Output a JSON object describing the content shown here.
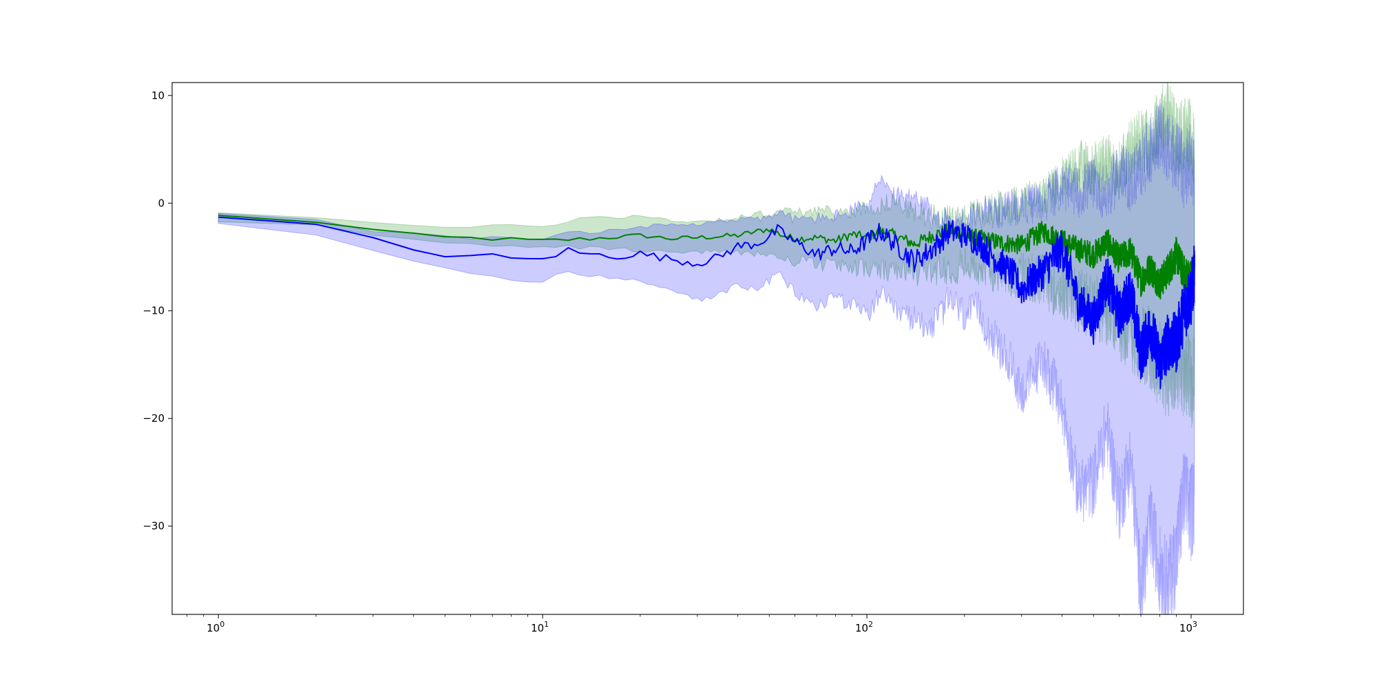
{
  "chart_data": {
    "type": "line",
    "title": "",
    "xlabel": "",
    "ylabel": "",
    "xscale": "log",
    "xlim": [
      0.72,
      1450
    ],
    "ylim": [
      -38.2,
      11.2
    ],
    "grid": false,
    "legend": null,
    "x_ticks": [
      {
        "value": 1,
        "base": "10",
        "exp": "0"
      },
      {
        "value": 10,
        "base": "10",
        "exp": "1"
      },
      {
        "value": 100,
        "base": "10",
        "exp": "2"
      },
      {
        "value": 1000,
        "base": "10",
        "exp": "3"
      }
    ],
    "y_ticks": [
      {
        "value": 10,
        "label": "10"
      },
      {
        "value": 0,
        "label": "0"
      },
      {
        "value": -10,
        "label": "−10"
      },
      {
        "value": -20,
        "label": "−20"
      },
      {
        "value": -30,
        "label": "−30"
      }
    ],
    "series": [
      {
        "color": "#008000",
        "band_color": "#008000",
        "band_opacity": 0.2,
        "x": [
          1,
          2,
          3,
          4,
          5,
          7,
          10,
          14,
          20,
          25,
          30,
          40,
          50,
          55,
          60,
          70,
          80,
          90,
          100,
          110,
          120,
          140,
          160,
          180,
          200,
          250,
          300,
          350,
          400,
          450,
          500,
          550,
          600,
          650,
          700,
          750,
          800,
          850,
          900,
          950,
          1000,
          1024
        ],
        "y": [
          -1.2,
          -1.7,
          -2.5,
          -3.0,
          -3.2,
          -3.3,
          -3.5,
          -3.3,
          -3.0,
          -3.3,
          -3.2,
          -3.0,
          -2.4,
          -3.0,
          -3.3,
          -3.2,
          -3.5,
          -2.9,
          -3.2,
          -2.6,
          -2.9,
          -3.8,
          -3.0,
          -2.5,
          -2.9,
          -3.6,
          -3.9,
          -2.6,
          -3.5,
          -4.3,
          -4.8,
          -3.6,
          -5.2,
          -4.5,
          -7.2,
          -6.0,
          -7.5,
          -6.2,
          -4.8,
          -6.5,
          -7.0,
          -6.0
        ],
        "y_upper": [
          -0.8,
          -1.2,
          -1.8,
          -2.1,
          -2.3,
          -2.2,
          -2.1,
          -1.3,
          -1.2,
          -1.6,
          -1.7,
          -1.4,
          -0.9,
          -0.7,
          -0.9,
          -0.6,
          -1.0,
          -0.7,
          -0.4,
          -0.3,
          0.3,
          -0.9,
          -1.2,
          -1.5,
          -1.2,
          -0.5,
          0.1,
          0.5,
          2.1,
          3.5,
          3.2,
          3.8,
          3.0,
          5.0,
          6.0,
          5.5,
          7.8,
          8.5,
          6.0,
          6.5,
          6.0,
          4.5
        ],
        "y_lower": [
          -1.6,
          -2.1,
          -3.1,
          -3.5,
          -3.8,
          -3.9,
          -4.0,
          -4.1,
          -4.4,
          -4.5,
          -4.6,
          -4.5,
          -4.8,
          -5.2,
          -5.4,
          -5.6,
          -5.8,
          -5.9,
          -6.1,
          -6.3,
          -6.5,
          -6.4,
          -6.2,
          -6.0,
          -5.8,
          -6.3,
          -6.8,
          -7.2,
          -8.2,
          -9.0,
          -9.5,
          -10.2,
          -11.0,
          -12.0,
          -13.0,
          -13.5,
          -15.0,
          -16.0,
          -14.5,
          -15.5,
          -17.0,
          -15.0
        ]
      },
      {
        "color": "#0000ff",
        "band_color": "#0000ff",
        "band_opacity": 0.2,
        "x": [
          1,
          2,
          3,
          4,
          5,
          6,
          7,
          9,
          10,
          12,
          14,
          17,
          20,
          25,
          30,
          35,
          40,
          45,
          50,
          53,
          60,
          70,
          80,
          90,
          100,
          110,
          120,
          140,
          160,
          180,
          200,
          220,
          250,
          280,
          300,
          350,
          400,
          450,
          500,
          550,
          600,
          650,
          700,
          750,
          800,
          850,
          900,
          950,
          1000,
          1024
        ],
        "y": [
          -1.4,
          -2.2,
          -3.5,
          -4.3,
          -4.7,
          -4.9,
          -5.0,
          -5.3,
          -5.1,
          -4.4,
          -4.8,
          -4.9,
          -4.7,
          -5.2,
          -5.6,
          -5.0,
          -4.0,
          -3.8,
          -3.2,
          -2.5,
          -3.6,
          -4.8,
          -4.2,
          -4.5,
          -3.5,
          -2.6,
          -3.6,
          -5.4,
          -4.2,
          -2.6,
          -3.0,
          -3.6,
          -5.2,
          -6.6,
          -8.0,
          -6.3,
          -4.2,
          -9.2,
          -11.0,
          -7.0,
          -10.5,
          -8.2,
          -14.0,
          -11.5,
          -15.0,
          -12.8,
          -13.0,
          -10.0,
          -8.5,
          -6.5
        ],
        "y_upper": [
          -1.1,
          -1.6,
          -2.5,
          -2.9,
          -3.1,
          -3.2,
          -3.2,
          -3.3,
          -3.2,
          -2.7,
          -2.8,
          -2.5,
          -2.2,
          -2.0,
          -2.1,
          -1.6,
          -1.5,
          -1.3,
          -1.4,
          -0.8,
          -1.5,
          -1.4,
          -1.2,
          -0.7,
          -0.1,
          2.2,
          0.6,
          0.4,
          -1.0,
          -1.8,
          -1.6,
          -0.9,
          -0.8,
          -0.4,
          -0.3,
          0.2,
          1.5,
          1.0,
          2.0,
          0.8,
          3.0,
          2.0,
          3.5,
          5.0,
          6.5,
          5.0,
          4.5,
          3.0,
          4.0,
          3.0
        ],
        "y_lower": [
          -1.7,
          -2.8,
          -4.3,
          -5.4,
          -6.2,
          -6.6,
          -6.9,
          -7.4,
          -7.2,
          -6.4,
          -6.7,
          -7.0,
          -7.3,
          -8.1,
          -9.0,
          -8.5,
          -7.6,
          -8.0,
          -7.3,
          -6.5,
          -8.3,
          -9.7,
          -8.5,
          -9.5,
          -10.5,
          -8.4,
          -10.0,
          -10.8,
          -11.4,
          -9.0,
          -10.4,
          -10.0,
          -13.0,
          -15.2,
          -17.7,
          -14.5,
          -19.0,
          -27.0,
          -26.0,
          -21.0,
          -28.0,
          -24.0,
          -36.0,
          -30.0,
          -34.0,
          -35.5,
          -33.0,
          -27.0,
          -29.0,
          -27.0
        ]
      }
    ]
  }
}
